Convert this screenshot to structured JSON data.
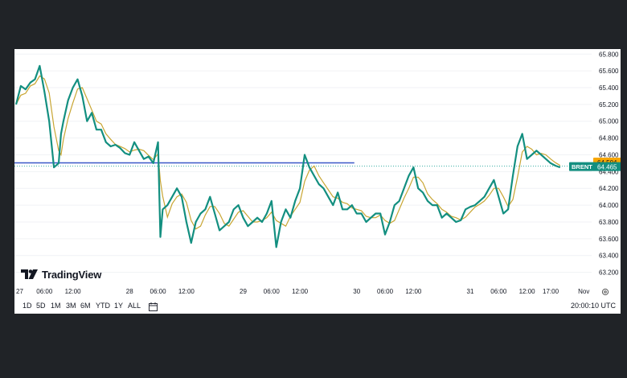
{
  "brand": "TradingView",
  "clock": "20:00:10 UTC",
  "timeframes": [
    "1D",
    "5D",
    "1M",
    "3M",
    "6M",
    "YTD",
    "1Y",
    "ALL"
  ],
  "colors": {
    "line": "#138f80",
    "ma": "#c8a532",
    "hline": "#3b58c8",
    "label_bg": "#f7a600",
    "brent_bg": "#138f80",
    "dotted": "#26a69a"
  },
  "icons": {
    "logo": "tradingview-logo-icon",
    "calendar": "calendar-range-icon",
    "settings": "gear-icon"
  },
  "chart_data": {
    "type": "line",
    "symbol_label": "BRENT",
    "last_price_label": "64.465",
    "hline_price_label": "64.504",
    "hline_value": 64.504,
    "last_value": 64.465,
    "ylim": [
      63.1,
      65.86
    ],
    "yticks": [
      63.2,
      63.4,
      63.6,
      63.8,
      64.0,
      64.2,
      64.4,
      64.6,
      64.8,
      65.0,
      65.2,
      65.4,
      65.6,
      65.8
    ],
    "ytick_labels": [
      "63.200",
      "63.400",
      "63.600",
      "63.800",
      "64.000",
      "64.200",
      "64.400",
      "64.600",
      "64.800",
      "65.000",
      "65.200",
      "65.400",
      "65.600",
      "65.800"
    ],
    "xtick_labels": [
      "27",
      "06:00",
      "12:00",
      "28",
      "06:00",
      "12:00",
      "29",
      "06:00",
      "12:00",
      "30",
      "06:00",
      "12:00",
      "31",
      "06:00",
      "12:00",
      "17:00",
      "Nov"
    ],
    "xtick_hours": [
      0,
      6,
      12,
      24,
      30,
      36,
      48,
      54,
      60,
      72,
      78,
      84,
      96,
      102,
      108,
      113,
      120
    ],
    "series": [
      {
        "x": [
          0,
          1,
          2,
          3,
          4,
          5,
          6,
          7,
          8,
          9,
          9.5,
          10,
          11,
          12,
          13,
          14,
          15,
          16,
          17,
          18,
          19,
          20,
          21,
          22,
          23,
          24,
          25,
          26,
          27,
          28,
          29,
          30,
          30.5,
          31,
          32,
          33,
          34,
          35,
          36,
          37,
          38,
          39,
          40,
          41,
          42,
          43,
          44,
          45,
          46,
          47,
          48,
          49,
          50,
          51,
          52,
          53,
          54,
          55,
          56,
          57,
          58,
          59,
          60,
          61,
          62,
          63,
          64,
          65,
          66,
          67,
          68,
          69,
          70,
          71,
          72,
          73,
          74,
          75,
          76,
          77,
          78,
          79,
          80,
          81,
          82,
          83,
          84,
          85,
          86,
          87,
          88,
          89,
          90,
          91,
          92,
          93,
          94,
          95,
          96,
          97,
          98,
          99,
          100,
          101,
          102,
          103,
          104,
          105,
          106,
          107,
          108,
          109,
          110,
          111,
          112,
          113,
          114,
          115
        ],
        "y": [
          65.2,
          65.42,
          65.38,
          65.46,
          65.5,
          65.66,
          65.35,
          65.0,
          64.45,
          64.5,
          64.85,
          65.0,
          65.25,
          65.4,
          65.5,
          65.3,
          65.0,
          65.1,
          64.9,
          64.9,
          64.75,
          64.7,
          64.72,
          64.68,
          64.62,
          64.6,
          64.75,
          64.65,
          64.55,
          64.58,
          64.5,
          64.75,
          63.62,
          63.95,
          64.0,
          64.1,
          64.2,
          64.1,
          63.8,
          63.55,
          63.8,
          63.9,
          63.95,
          64.1,
          63.9,
          63.7,
          63.75,
          63.8,
          63.95,
          64.0,
          63.85,
          63.75,
          63.8,
          63.85,
          63.8,
          63.9,
          64.05,
          63.5,
          63.8,
          63.95,
          63.85,
          64.05,
          64.2,
          64.6,
          64.45,
          64.35,
          64.25,
          64.2,
          64.1,
          64.0,
          64.15,
          63.95,
          63.95,
          64.0,
          63.9,
          63.9,
          63.8,
          63.85,
          63.9,
          63.9,
          63.65,
          63.8,
          64.0,
          64.05,
          64.2,
          64.35,
          64.45,
          64.2,
          64.15,
          64.05,
          64.0,
          64.0,
          63.85,
          63.9,
          63.85,
          63.8,
          63.82,
          63.95,
          63.98,
          64.0,
          64.05,
          64.1,
          64.2,
          64.3,
          64.1,
          63.9,
          63.95,
          64.35,
          64.7,
          64.85,
          64.55,
          64.6,
          64.65,
          64.6,
          64.55,
          64.5,
          64.47,
          64.45
        ]
      }
    ]
  }
}
